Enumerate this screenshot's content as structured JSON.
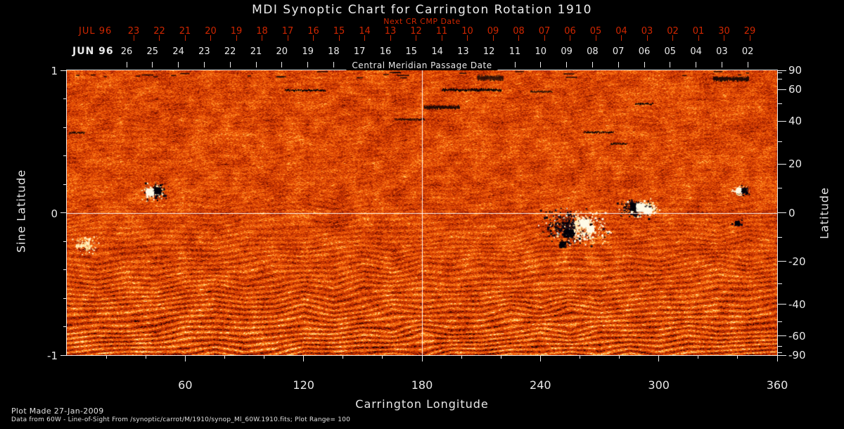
{
  "colors": {
    "background": "#000000",
    "axis_text": "#e8e8e8",
    "red_axis_text": "#cf2600",
    "grid_line": "#ffffff",
    "gap": "#020007",
    "ar_white": "#fff6dc",
    "ar_black": "#05020c",
    "palette": [
      "#0f0000",
      "#5c0a00",
      "#a52200",
      "#d43e03",
      "#f05c08",
      "#ff8a22",
      "#ffc65c",
      "#fff4be"
    ]
  },
  "footer": {
    "line1": "Plot Made 27-Jan-2009",
    "line2": "Data from 60W - Line-of-Sight From /synoptic/carrot/M/1910/synop_Ml_60W.1910.fits; Plot Range=  100"
  },
  "chart_data": {
    "type": "heatmap",
    "title": "MDI Synoptic Chart for Carrington Rotation 1910",
    "subtitle_top": "Next CR CMP Date",
    "carrington_rotation": 1910,
    "plot_range_gauss": 100,
    "top_axis": {
      "red_month": "JUL 96",
      "red_dates": [
        "23",
        "22",
        "21",
        "20",
        "19",
        "18",
        "17",
        "16",
        "15",
        "14",
        "13",
        "12",
        "11",
        "10",
        "09",
        "08",
        "07",
        "06",
        "05",
        "04",
        "03",
        "02",
        "01",
        "30",
        "29"
      ],
      "white_month": "JUN 96",
      "white_dates": [
        "26",
        "25",
        "24",
        "23",
        "22",
        "21",
        "20",
        "19",
        "18",
        "17",
        "16",
        "15",
        "14",
        "13",
        "12",
        "11",
        "10",
        "09",
        "08",
        "07",
        "06",
        "05",
        "04",
        "03",
        "02"
      ],
      "axis_label": "Central Meridian Passage Date"
    },
    "xlabel": "Carrington Longitude",
    "x_ticks": [
      60,
      120,
      180,
      240,
      300,
      360
    ],
    "x_minor_step": 20,
    "x_range": [
      0,
      360
    ],
    "ylabel_left": "Sine Latitude",
    "y_left_ticks": [
      1,
      0,
      -1
    ],
    "y_left_minor_ticks": [
      0.8,
      0.6,
      0.4,
      0.2,
      -0.2,
      -0.4,
      -0.6,
      -0.8
    ],
    "y_range": [
      -1,
      1
    ],
    "ylabel_right": "Latitude",
    "y_right_ticks": [
      90,
      60,
      40,
      20,
      0,
      -20,
      -40,
      -60,
      -90
    ],
    "y_right_minor_step": 10,
    "gridlines": {
      "x": [
        180
      ],
      "y": [
        0
      ]
    },
    "colormap": "black-red-orange-yellow-white magnetogram noise",
    "features": {
      "wave_pattern": "quasi-horizontal striations strengthening toward the south (bottom) of the map",
      "top_edge_noise": "scattered short black dashes along the north (top) edge",
      "data_gaps": [
        {
          "lon": [
            110.5,
            131
          ],
          "sine_lat": 0.86,
          "px": 2
        },
        {
          "lon": [
            190,
            220
          ],
          "sine_lat": 0.862,
          "px": 3
        },
        {
          "lon": [
            208,
            221
          ],
          "sine_lat": 0.947,
          "px": 6
        },
        {
          "lon": [
            181,
            199
          ],
          "sine_lat": 0.74,
          "px": 4
        },
        {
          "lon": [
            166,
            181
          ],
          "sine_lat": 0.655,
          "px": 2
        },
        {
          "lon": [
            327.5,
            345.5
          ],
          "sine_lat": 0.94,
          "px": 5
        },
        {
          "lon": [
            262,
            277
          ],
          "sine_lat": 0.565,
          "px": 2
        },
        {
          "lon": [
            275.5,
            284
          ],
          "sine_lat": 0.485,
          "px": 2
        },
        {
          "lon": [
            235,
            246
          ],
          "sine_lat": 0.85,
          "px": 2
        },
        {
          "lon": [
            288,
            297
          ],
          "sine_lat": 0.765,
          "px": 2
        },
        {
          "lon": [
            1,
            9
          ],
          "sine_lat": 0.56,
          "px": 2
        }
      ],
      "active_regions": [
        {
          "lon": 44,
          "sine_lat": 0.155,
          "spread_lon": 5,
          "spread_sl": 0.05,
          "count": 260,
          "polarity": "white-left",
          "cores": [
            {
              "dlon": 1.8,
              "dsl": 0.005,
              "r": 1.6,
              "pol": "b"
            },
            {
              "dlon": -2.2,
              "dsl": -0.005,
              "r": 1.9,
              "pol": "w"
            }
          ]
        },
        {
          "lon": 289.5,
          "sine_lat": 0.035,
          "spread_lon": 8,
          "spread_sl": 0.05,
          "count": 420,
          "polarity": "white-right",
          "cores": [
            {
              "dlon": -2.2,
              "dsl": 0.01,
              "r": 2.0,
              "pol": "b"
            },
            {
              "dlon": 1.2,
              "dsl": 0.005,
              "r": 2.2,
              "pol": "w"
            },
            {
              "dlon": 4.6,
              "dsl": -0.015,
              "r": 1.8,
              "pol": "w"
            }
          ]
        },
        {
          "lon": 257,
          "sine_lat": -0.1,
          "spread_lon": 13,
          "spread_sl": 0.1,
          "count": 850,
          "polarity": "white-right",
          "cores": [
            {
              "dlon": 5,
              "dsl": 0.03,
              "r": 2.2,
              "pol": "w"
            },
            {
              "dlon": 8,
              "dsl": -0.01,
              "r": 1.7,
              "pol": "w"
            },
            {
              "dlon": -3,
              "dsl": -0.04,
              "r": 2.3,
              "pol": "b"
            },
            {
              "dlon": -6,
              "dsl": -0.12,
              "r": 1.6,
              "pol": "b"
            }
          ]
        },
        {
          "lon": 341.5,
          "sine_lat": 0.16,
          "spread_lon": 3.5,
          "spread_sl": 0.03,
          "count": 130,
          "polarity": "white-left",
          "cores": [
            {
              "dlon": -1.2,
              "dsl": 0,
              "r": 1.4,
              "pol": "w"
            },
            {
              "dlon": 1.4,
              "dsl": 0,
              "r": 1.2,
              "pol": "b"
            }
          ]
        },
        {
          "lon": 339.5,
          "sine_lat": -0.07,
          "spread_lon": 2,
          "spread_sl": 0.02,
          "count": 50,
          "polarity": "black",
          "cores": [
            {
              "dlon": 0,
              "dsl": 0,
              "r": 1.1,
              "pol": "b"
            }
          ]
        },
        {
          "lon": 9.5,
          "sine_lat": -0.225,
          "spread_lon": 5,
          "spread_sl": 0.05,
          "count": 150,
          "polarity": "white",
          "cores": []
        }
      ]
    }
  }
}
